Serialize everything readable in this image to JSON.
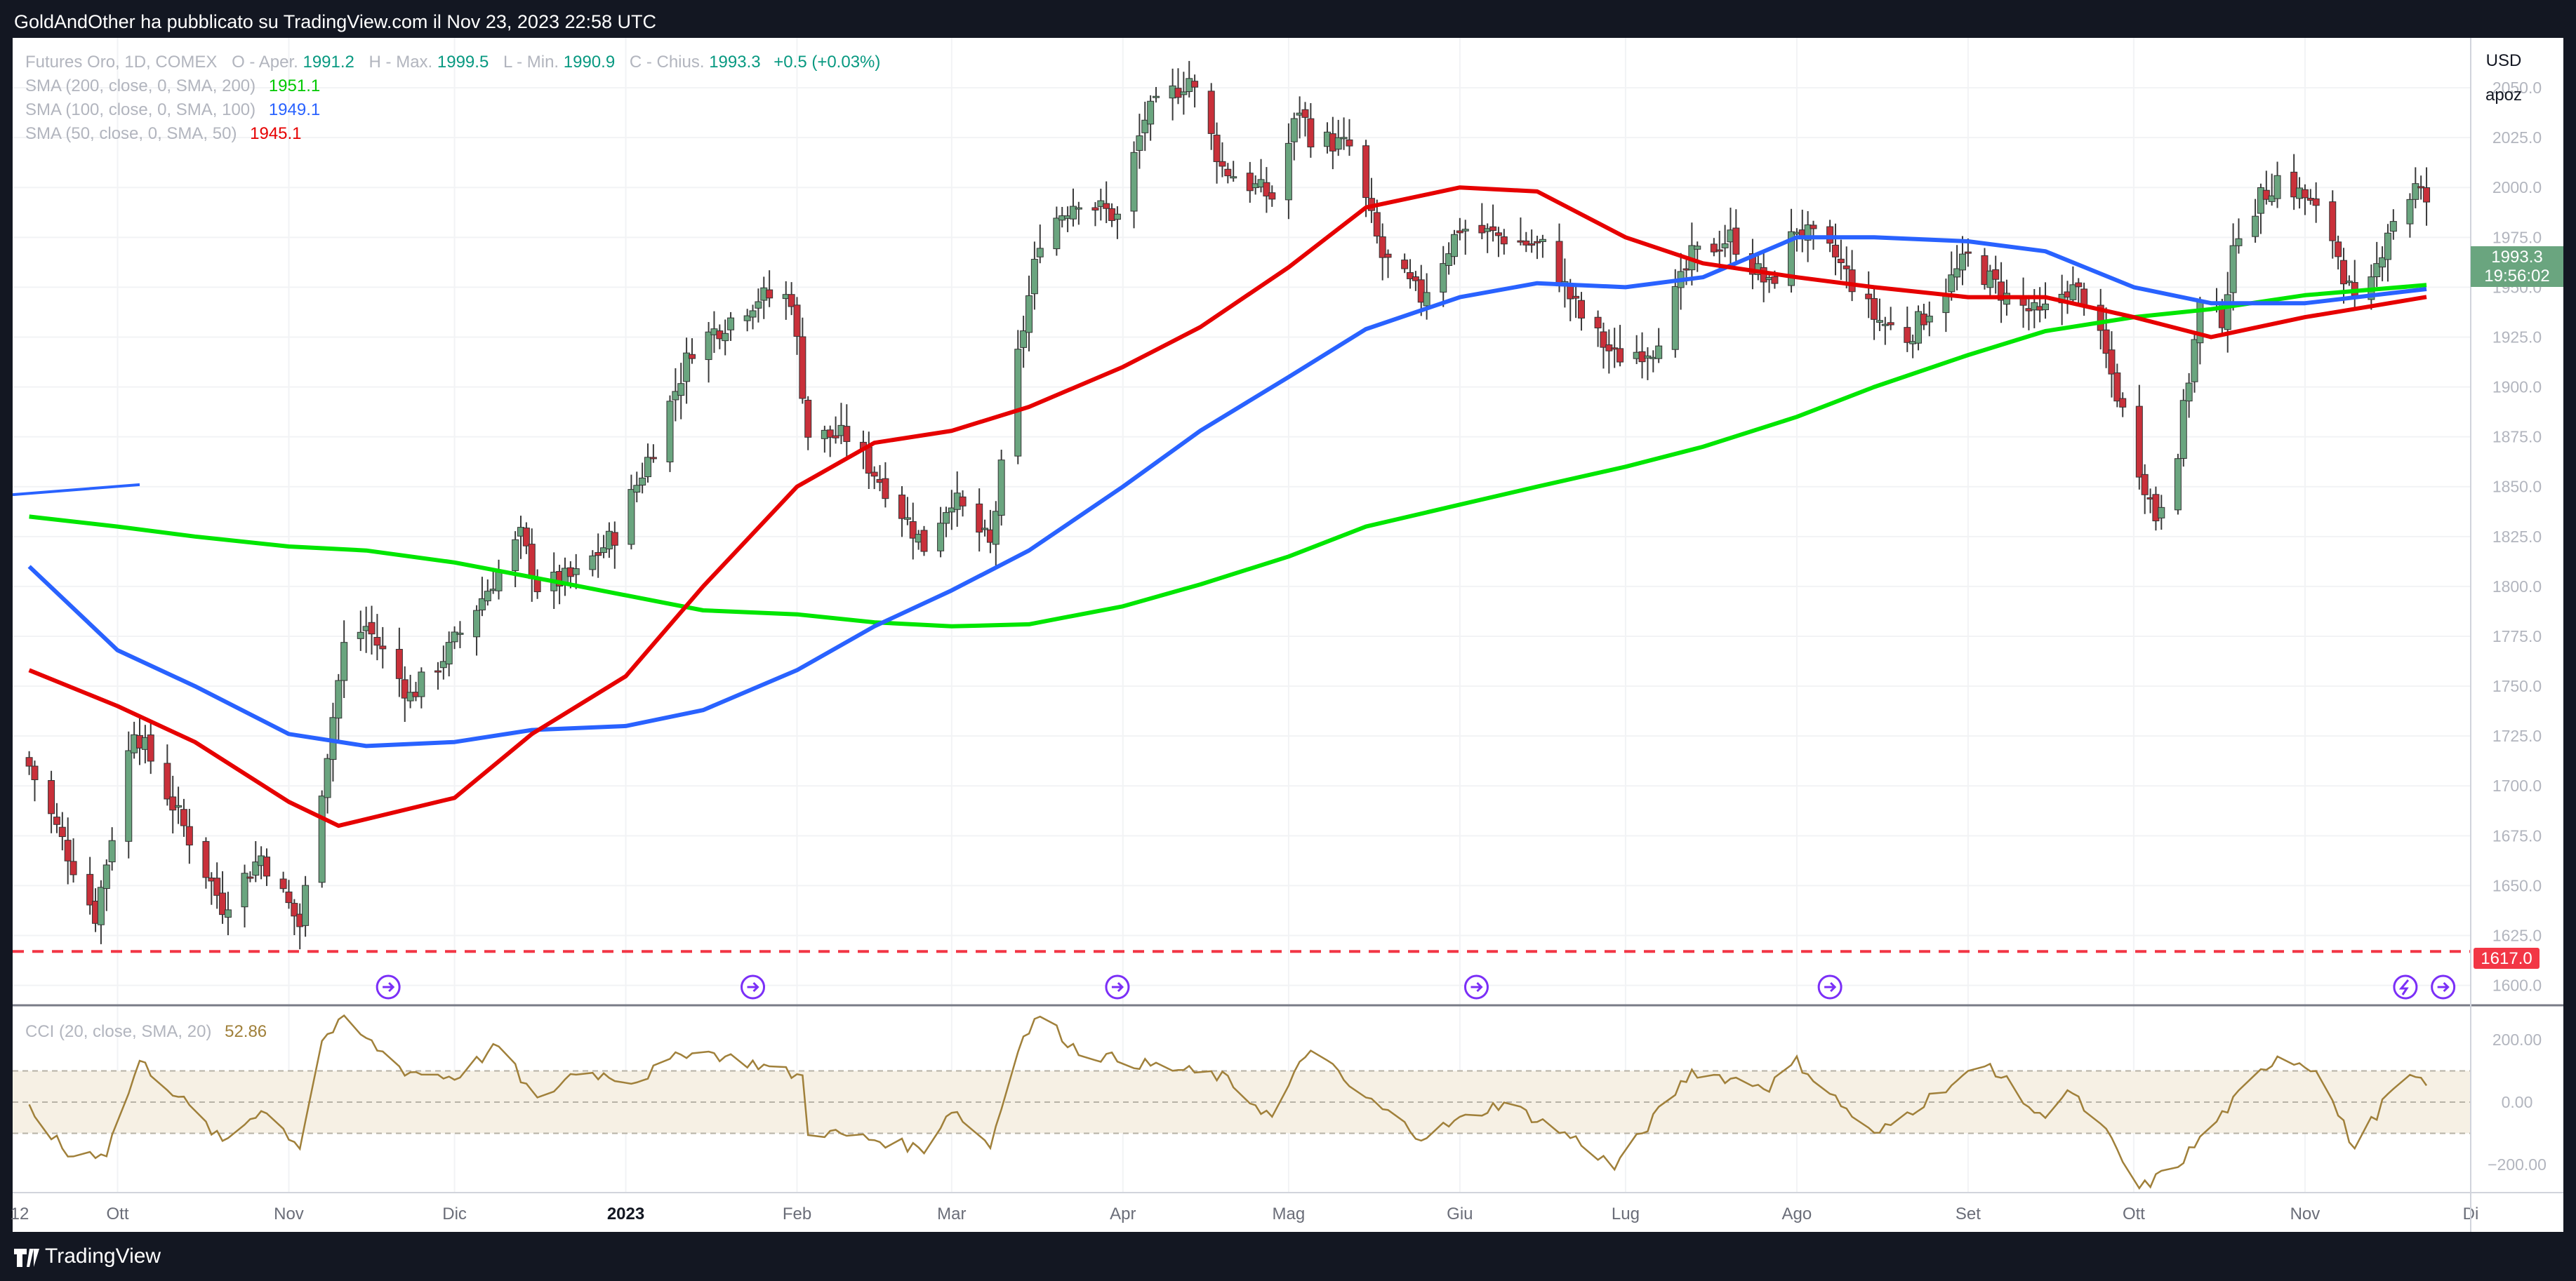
{
  "header": {
    "published": "GoldAndOther ha pubblicato su TradingView.com il Nov 23, 2023 22:58 UTC"
  },
  "footer": {
    "brand": "TradingView",
    "logo_icon": "tradingview-logo-icon"
  },
  "main_legend": {
    "symbol": "Futures Oro, 1D, COMEX",
    "o_label": "O - Aper.",
    "o_val": "1991.2",
    "h_label": "H - Max.",
    "h_val": "1999.5",
    "l_label": "L - Min.",
    "l_val": "1990.9",
    "c_label": "C - Chius.",
    "c_val": "1993.3",
    "change": "+0.5 (+0.03%)"
  },
  "sma_legend": [
    {
      "label": "SMA (200, close, 0, SMA, 200)",
      "value": "1951.1",
      "color": "#00e600"
    },
    {
      "label": "SMA (100, close, 0, SMA, 100)",
      "value": "1949.1",
      "color": "#2962ff"
    },
    {
      "label": "SMA (50, close, 0, SMA, 50)",
      "value": "1945.1",
      "color": "#e60000"
    }
  ],
  "axis_controls": {
    "currency": "USD",
    "scale": "apoz"
  },
  "price_badge": {
    "price": "1993.3",
    "countdown": "19:56:02"
  },
  "support_line": {
    "value": 1617.0,
    "label": "1617.0"
  },
  "cci_legend": {
    "label": "CCI (20, close, SMA, 20)",
    "value": "52.86"
  },
  "chart_data": [
    {
      "type": "candlestick",
      "title": "Futures Oro, 1D, COMEX",
      "y_ticks": [
        "1600.0",
        "1625.0",
        "1650.0",
        "1675.0",
        "1700.0",
        "1725.0",
        "1750.0",
        "1775.0",
        "1800.0",
        "1825.0",
        "1850.0",
        "1875.0",
        "1900.0",
        "1925.0",
        "1950.0",
        "1975.0",
        "2000.0",
        "2025.0",
        "2050.0"
      ],
      "x_ticks": [
        "12",
        "Ott",
        "Nov",
        "Dic",
        "2023",
        "Feb",
        "Mar",
        "Apr",
        "Mag",
        "Giu",
        "Lug",
        "Ago",
        "Set",
        "Ott",
        "Nov",
        "Di"
      ],
      "ylim": [
        1590,
        2075
      ],
      "anchors_close": [
        [
          "2022-09-15",
          1710
        ],
        [
          "2022-09-27",
          1635
        ],
        [
          "2022-10-04",
          1730
        ],
        [
          "2022-10-20",
          1640
        ],
        [
          "2022-10-27",
          1665
        ],
        [
          "2022-11-03",
          1630
        ],
        [
          "2022-11-11",
          1770
        ],
        [
          "2022-11-15",
          1780
        ],
        [
          "2022-11-23",
          1745
        ],
        [
          "2022-11-30",
          1768
        ],
        [
          "2022-12-05",
          1790
        ],
        [
          "2022-12-13",
          1825
        ],
        [
          "2022-12-16",
          1800
        ],
        [
          "2022-12-23",
          1805
        ],
        [
          "2022-12-30",
          1826
        ],
        [
          "2023-01-06",
          1870
        ],
        [
          "2023-01-13",
          1920
        ],
        [
          "2023-01-18",
          1930
        ],
        [
          "2023-01-25",
          1945
        ],
        [
          "2023-01-31",
          1945
        ],
        [
          "2023-02-03",
          1876
        ],
        [
          "2023-02-10",
          1875
        ],
        [
          "2023-02-17",
          1850
        ],
        [
          "2023-02-24",
          1820
        ],
        [
          "2023-03-01",
          1845
        ],
        [
          "2023-03-08",
          1820
        ],
        [
          "2023-03-13",
          1915
        ],
        [
          "2023-03-17",
          1975
        ],
        [
          "2023-03-20",
          1985
        ],
        [
          "2023-03-24",
          1995
        ],
        [
          "2023-03-31",
          1985
        ],
        [
          "2023-04-05",
          2035
        ],
        [
          "2023-04-13",
          2055
        ],
        [
          "2023-04-19",
          2010
        ],
        [
          "2023-04-28",
          1995
        ],
        [
          "2023-05-03",
          2040
        ],
        [
          "2023-05-05",
          2026
        ],
        [
          "2023-05-12",
          2020
        ],
        [
          "2023-05-18",
          1965
        ],
        [
          "2023-05-25",
          1945
        ],
        [
          "2023-06-01",
          1980
        ],
        [
          "2023-06-09",
          1975
        ],
        [
          "2023-06-16",
          1970
        ],
        [
          "2023-06-23",
          1935
        ],
        [
          "2023-06-29",
          1915
        ],
        [
          "2023-07-06",
          1920
        ],
        [
          "2023-07-13",
          1965
        ],
        [
          "2023-07-20",
          1975
        ],
        [
          "2023-07-27",
          1950
        ],
        [
          "2023-08-01",
          1980
        ],
        [
          "2023-08-08",
          1965
        ],
        [
          "2023-08-15",
          1935
        ],
        [
          "2023-08-21",
          1925
        ],
        [
          "2023-08-28",
          1950
        ],
        [
          "2023-09-01",
          1965
        ],
        [
          "2023-09-08",
          1945
        ],
        [
          "2023-09-14",
          1935
        ],
        [
          "2023-09-19",
          1950
        ],
        [
          "2023-09-22",
          1945
        ],
        [
          "2023-09-26",
          1915
        ],
        [
          "2023-10-02",
          1860
        ],
        [
          "2023-10-05",
          1835
        ],
        [
          "2023-10-09",
          1870
        ],
        [
          "2023-10-13",
          1940
        ],
        [
          "2023-10-17",
          1935
        ],
        [
          "2023-10-20",
          1980
        ],
        [
          "2023-10-27",
          2005
        ],
        [
          "2023-11-01",
          1995
        ],
        [
          "2023-11-06",
          1975
        ],
        [
          "2023-11-10",
          1940
        ],
        [
          "2023-11-13",
          1950
        ],
        [
          "2023-11-16",
          1980
        ],
        [
          "2023-11-21",
          2000
        ],
        [
          "2023-11-23",
          1993.3
        ]
      ],
      "series": [
        {
          "name": "SMA (200, close, 0, SMA, 200)",
          "color": "#00e600",
          "points": [
            [
              "2022-09-15",
              1835
            ],
            [
              "2022-10-01",
              1830
            ],
            [
              "2022-10-15",
              1825
            ],
            [
              "2022-11-01",
              1820
            ],
            [
              "2022-11-15",
              1818
            ],
            [
              "2022-12-01",
              1812
            ],
            [
              "2022-12-20",
              1802
            ],
            [
              "2023-01-15",
              1788
            ],
            [
              "2023-02-01",
              1786
            ],
            [
              "2023-02-15",
              1782
            ],
            [
              "2023-03-01",
              1780
            ],
            [
              "2023-03-15",
              1781
            ],
            [
              "2023-04-01",
              1790
            ],
            [
              "2023-04-15",
              1801
            ],
            [
              "2023-05-01",
              1815
            ],
            [
              "2023-05-15",
              1830
            ],
            [
              "2023-06-01",
              1841
            ],
            [
              "2023-06-15",
              1850
            ],
            [
              "2023-07-01",
              1860
            ],
            [
              "2023-07-15",
              1870
            ],
            [
              "2023-08-01",
              1885
            ],
            [
              "2023-08-15",
              1900
            ],
            [
              "2023-09-01",
              1916
            ],
            [
              "2023-09-15",
              1928
            ],
            [
              "2023-10-01",
              1935
            ],
            [
              "2023-10-15",
              1939
            ],
            [
              "2023-11-01",
              1946
            ],
            [
              "2023-11-23",
              1951.1
            ]
          ]
        },
        {
          "name": "SMA (100, close, 0, SMA, 100)",
          "color": "#2962ff",
          "points": [
            [
              "2022-09-15",
              1810
            ],
            [
              "2022-10-01",
              1768
            ],
            [
              "2022-10-15",
              1750
            ],
            [
              "2022-11-01",
              1726
            ],
            [
              "2022-11-15",
              1720
            ],
            [
              "2022-12-01",
              1722
            ],
            [
              "2022-12-15",
              1728
            ],
            [
              "2023-01-01",
              1730
            ],
            [
              "2023-01-15",
              1738
            ],
            [
              "2023-02-01",
              1758
            ],
            [
              "2023-02-15",
              1780
            ],
            [
              "2023-03-01",
              1798
            ],
            [
              "2023-03-15",
              1818
            ],
            [
              "2023-04-01",
              1850
            ],
            [
              "2023-04-15",
              1878
            ],
            [
              "2023-05-01",
              1905
            ],
            [
              "2023-05-15",
              1929
            ],
            [
              "2023-06-01",
              1945
            ],
            [
              "2023-06-15",
              1952
            ],
            [
              "2023-07-01",
              1950
            ],
            [
              "2023-07-15",
              1955
            ],
            [
              "2023-08-01",
              1975
            ],
            [
              "2023-08-15",
              1975
            ],
            [
              "2023-09-01",
              1973
            ],
            [
              "2023-09-15",
              1968
            ],
            [
              "2023-10-01",
              1950
            ],
            [
              "2023-10-15",
              1942
            ],
            [
              "2023-11-01",
              1942
            ],
            [
              "2023-11-23",
              1949.1
            ]
          ]
        },
        {
          "name": "SMA (50, close, 0, SMA, 50)",
          "color": "#e60000",
          "points": [
            [
              "2022-09-15",
              1758
            ],
            [
              "2022-10-01",
              1740
            ],
            [
              "2022-10-15",
              1722
            ],
            [
              "2022-11-01",
              1692
            ],
            [
              "2022-11-10",
              1680
            ],
            [
              "2022-12-01",
              1694
            ],
            [
              "2022-12-15",
              1726
            ],
            [
              "2023-01-01",
              1755
            ],
            [
              "2023-01-15",
              1800
            ],
            [
              "2023-02-01",
              1850
            ],
            [
              "2023-02-15",
              1872
            ],
            [
              "2023-03-01",
              1878
            ],
            [
              "2023-03-15",
              1890
            ],
            [
              "2023-04-01",
              1910
            ],
            [
              "2023-04-15",
              1930
            ],
            [
              "2023-05-01",
              1960
            ],
            [
              "2023-05-15",
              1990
            ],
            [
              "2023-06-01",
              2000
            ],
            [
              "2023-06-15",
              1998
            ],
            [
              "2023-07-01",
              1975
            ],
            [
              "2023-07-15",
              1962
            ],
            [
              "2023-08-01",
              1955
            ],
            [
              "2023-08-15",
              1950
            ],
            [
              "2023-09-01",
              1945
            ],
            [
              "2023-09-15",
              1945
            ],
            [
              "2023-10-01",
              1935
            ],
            [
              "2023-10-15",
              1925
            ],
            [
              "2023-11-01",
              1935
            ],
            [
              "2023-11-12",
              1940
            ],
            [
              "2023-11-23",
              1945.1
            ]
          ]
        }
      ]
    },
    {
      "type": "line",
      "title": "CCI (20, close, SMA, 20)",
      "y_ticks": [
        "200.00",
        "0.00",
        "−200.00"
      ],
      "band": [
        -100,
        100
      ],
      "ylim": [
        -290,
        310
      ],
      "series": [
        {
          "name": "CCI (20, close, SMA, 20)",
          "color": "#a0803a",
          "points": [
            [
              "2022-09-15",
              -20
            ],
            [
              "2022-09-22",
              -170
            ],
            [
              "2022-09-29",
              -160
            ],
            [
              "2022-10-05",
              130
            ],
            [
              "2022-10-12",
              20
            ],
            [
              "2022-10-20",
              -130
            ],
            [
              "2022-10-27",
              -20
            ],
            [
              "2022-11-03",
              -140
            ],
            [
              "2022-11-07",
              200
            ],
            [
              "2022-11-11",
              260
            ],
            [
              "2022-11-22",
              100
            ],
            [
              "2022-12-01",
              80
            ],
            [
              "2022-12-09",
              180
            ],
            [
              "2022-12-16",
              0
            ],
            [
              "2022-12-23",
              100
            ],
            [
              "2023-01-03",
              70
            ],
            [
              "2023-01-13",
              170
            ],
            [
              "2023-01-25",
              120
            ],
            [
              "2023-02-02",
              80
            ],
            [
              "2023-02-03",
              -90
            ],
            [
              "2023-02-15",
              -120
            ],
            [
              "2023-02-24",
              -150
            ],
            [
              "2023-03-01",
              -20
            ],
            [
              "2023-03-08",
              -140
            ],
            [
              "2023-03-13",
              180
            ],
            [
              "2023-03-17",
              280
            ],
            [
              "2023-03-24",
              160
            ],
            [
              "2023-04-05",
              120
            ],
            [
              "2023-04-19",
              80
            ],
            [
              "2023-04-28",
              -50
            ],
            [
              "2023-05-05",
              180
            ],
            [
              "2023-05-12",
              50
            ],
            [
              "2023-05-25",
              -110
            ],
            [
              "2023-06-09",
              0
            ],
            [
              "2023-06-23",
              -130
            ],
            [
              "2023-06-29",
              -210
            ],
            [
              "2023-07-13",
              100
            ],
            [
              "2023-07-27",
              50
            ],
            [
              "2023-08-01",
              130
            ],
            [
              "2023-08-15",
              -110
            ],
            [
              "2023-08-28",
              50
            ],
            [
              "2023-09-05",
              120
            ],
            [
              "2023-09-14",
              -50
            ],
            [
              "2023-09-19",
              40
            ],
            [
              "2023-09-26",
              -100
            ],
            [
              "2023-10-02",
              -280
            ],
            [
              "2023-10-09",
              -200
            ],
            [
              "2023-10-20",
              20
            ],
            [
              "2023-10-27",
              150
            ],
            [
              "2023-11-03",
              110
            ],
            [
              "2023-11-10",
              -150
            ],
            [
              "2023-11-16",
              20
            ],
            [
              "2023-11-21",
              80
            ],
            [
              "2023-11-23",
              52.86
            ]
          ]
        }
      ]
    }
  ]
}
